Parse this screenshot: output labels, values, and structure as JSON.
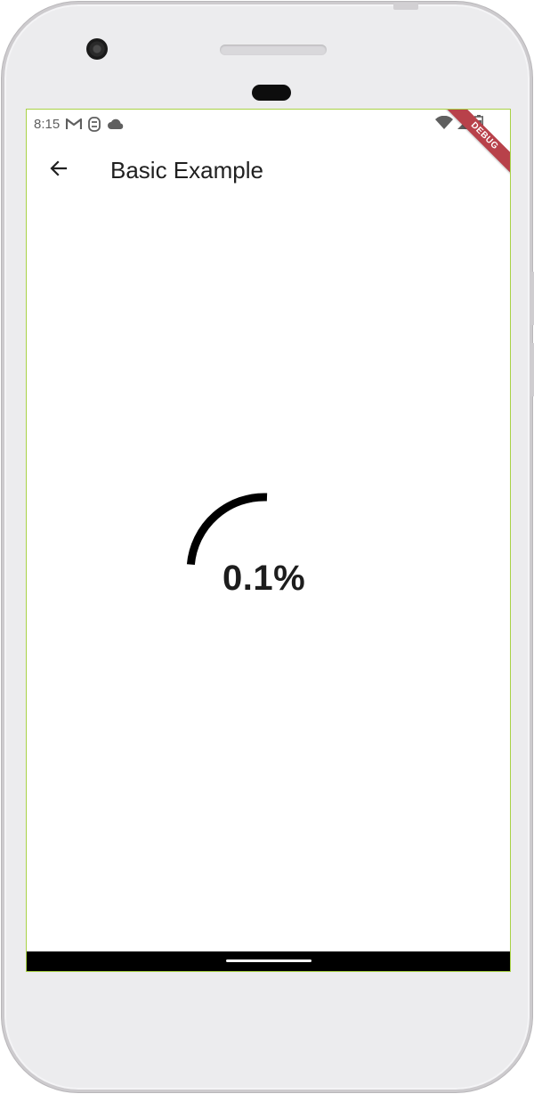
{
  "status_bar": {
    "time": "8:15",
    "notification_icons": [
      "gmail-icon",
      "s-app-icon",
      "cloud-icon"
    ],
    "system_icons": [
      "wifi-icon",
      "signal-icon",
      "battery-icon"
    ]
  },
  "debug_banner": {
    "label": "DEBUG",
    "color": "#b8414a"
  },
  "app_bar": {
    "back_icon": "arrow-back-icon",
    "title": "Basic Example"
  },
  "progress": {
    "label": "0.1%",
    "color": "#000000"
  },
  "colors": {
    "screen_outline": "#a9d246",
    "nav_bar": "#000000",
    "device_body": "#ececee"
  }
}
